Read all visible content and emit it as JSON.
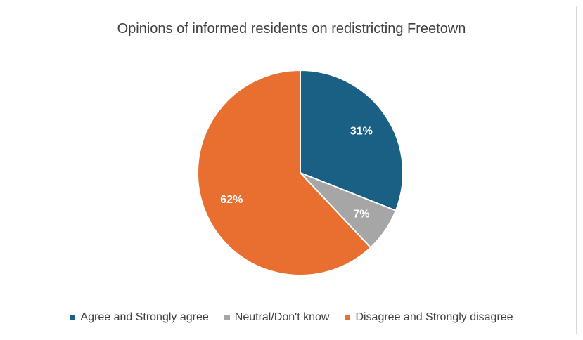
{
  "chart_data": {
    "type": "pie",
    "title": "Opinions of informed residents on redistricting Freetown",
    "slices": [
      {
        "label": "Agree and Strongly agree",
        "value": 31,
        "data_label": "31%",
        "color": "#1a5f84"
      },
      {
        "label": "Neutral/Don't know",
        "value": 7,
        "data_label": "7%",
        "color": "#a6a6a6"
      },
      {
        "label": "Disagree and Strongly disagree",
        "value": 62,
        "data_label": "62%",
        "color": "#e86f30"
      }
    ],
    "legend_position": "bottom",
    "start_angle": "12 o'clock",
    "direction": "clockwise"
  }
}
